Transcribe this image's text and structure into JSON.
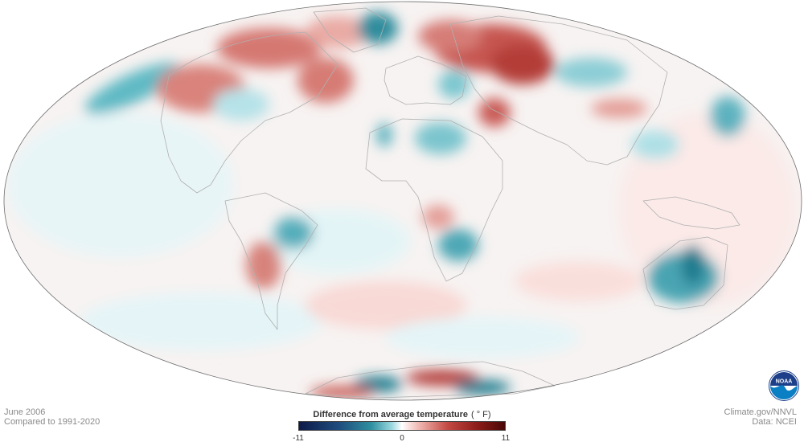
{
  "legend": {
    "title": "Difference from average temperature",
    "unit": "( ° F)",
    "min_label": "-11",
    "mid_label": "0",
    "max_label": "11",
    "range": [
      -11,
      11
    ],
    "colors": [
      "#0d1a4a",
      "#1f4f7f",
      "#2e8fa0",
      "#9ad8df",
      "#ffffff",
      "#f1b9b3",
      "#c44a44",
      "#8e1e1a",
      "#4a0707"
    ]
  },
  "meta_left": {
    "date": "June 2006",
    "baseline": "Compared to 1991-2020"
  },
  "meta_right": {
    "credit": "Climate.gov/NNVL",
    "source": "Data: NCEI"
  },
  "logo": {
    "text": "NOAA",
    "icon": "noaa-logo-icon"
  }
}
